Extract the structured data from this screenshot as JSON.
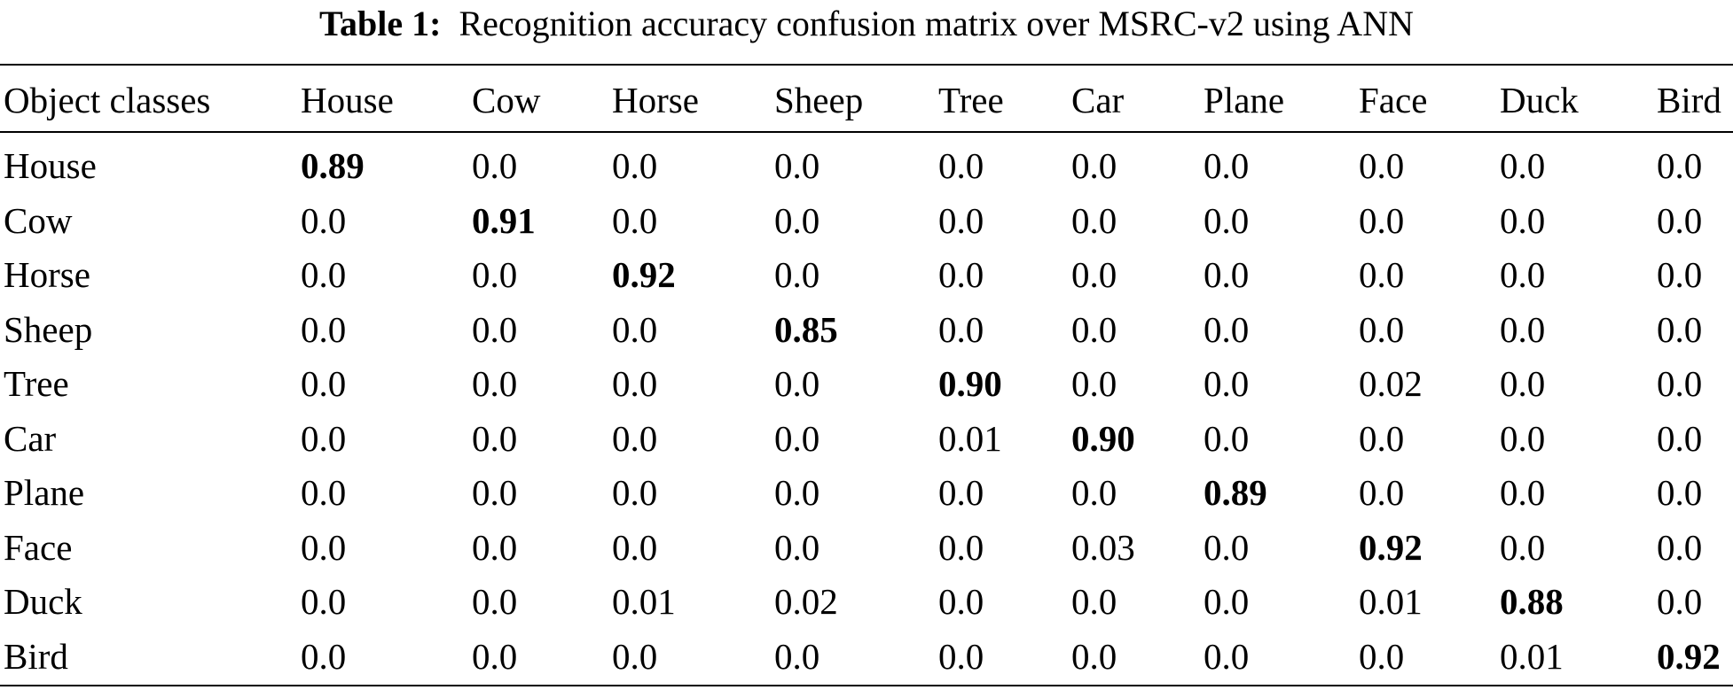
{
  "caption": {
    "label": "Table 1:",
    "text": "Recognition accuracy confusion matrix over MSRC-v2 using ANN"
  },
  "table": {
    "headers": [
      "Object classes",
      "House",
      "Cow",
      "Horse",
      "Sheep",
      "Tree",
      "Car",
      "Plane",
      "Face",
      "Duck",
      "Bird"
    ],
    "rows": [
      {
        "label": "House",
        "values": [
          "0.89",
          "0.0",
          "0.0",
          "0.0",
          "0.0",
          "0.0",
          "0.0",
          "0.0",
          "0.0",
          "0.0"
        ]
      },
      {
        "label": "Cow",
        "values": [
          "0.0",
          "0.91",
          "0.0",
          "0.0",
          "0.0",
          "0.0",
          "0.0",
          "0.0",
          "0.0",
          "0.0"
        ]
      },
      {
        "label": "Horse",
        "values": [
          "0.0",
          "0.0",
          "0.92",
          "0.0",
          "0.0",
          "0.0",
          "0.0",
          "0.0",
          "0.0",
          "0.0"
        ]
      },
      {
        "label": "Sheep",
        "values": [
          "0.0",
          "0.0",
          "0.0",
          "0.85",
          "0.0",
          "0.0",
          "0.0",
          "0.0",
          "0.0",
          "0.0"
        ]
      },
      {
        "label": "Tree",
        "values": [
          "0.0",
          "0.0",
          "0.0",
          "0.0",
          "0.90",
          "0.0",
          "0.0",
          "0.02",
          "0.0",
          "0.0"
        ]
      },
      {
        "label": "Car",
        "values": [
          "0.0",
          "0.0",
          "0.0",
          "0.0",
          "0.01",
          "0.90",
          "0.0",
          "0.0",
          "0.0",
          "0.0"
        ]
      },
      {
        "label": "Plane",
        "values": [
          "0.0",
          "0.0",
          "0.0",
          "0.0",
          "0.0",
          "0.0",
          "0.89",
          "0.0",
          "0.0",
          "0.0"
        ]
      },
      {
        "label": "Face",
        "values": [
          "0.0",
          "0.0",
          "0.0",
          "0.0",
          "0.0",
          "0.03",
          "0.0",
          "0.92",
          "0.0",
          "0.0"
        ]
      },
      {
        "label": "Duck",
        "values": [
          "0.0",
          "0.0",
          "0.01",
          "0.02",
          "0.0",
          "0.0",
          "0.0",
          "0.01",
          "0.88",
          "0.0"
        ]
      },
      {
        "label": "Bird",
        "values": [
          "0.0",
          "0.0",
          "0.0",
          "0.0",
          "0.0",
          "0.0",
          "0.0",
          "0.0",
          "0.01",
          "0.92"
        ]
      }
    ]
  }
}
